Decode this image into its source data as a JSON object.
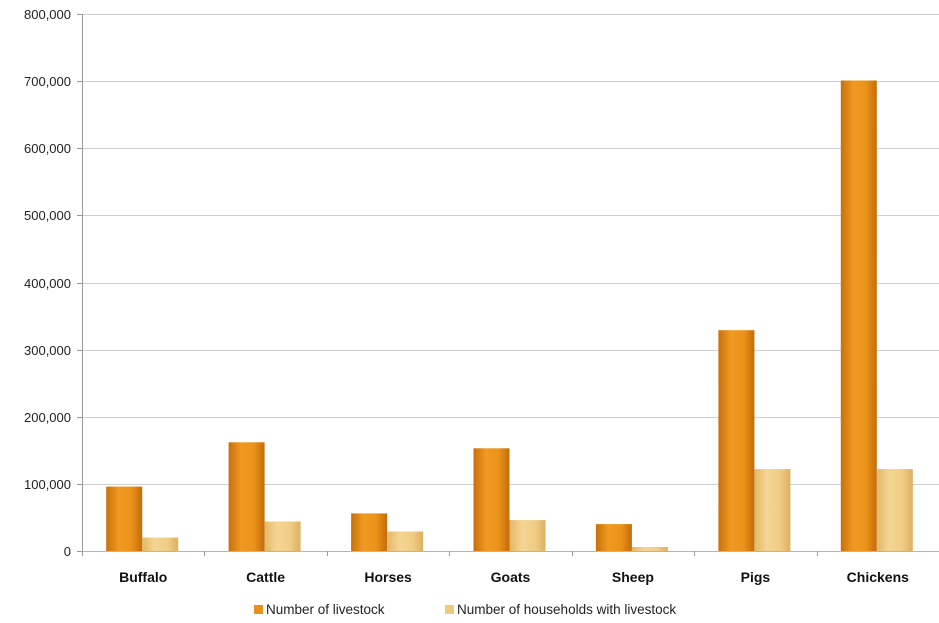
{
  "chart_data": {
    "type": "bar",
    "categories": [
      "Buffalo",
      "Cattle",
      "Horses",
      "Goats",
      "Sheep",
      "Pigs",
      "Chickens"
    ],
    "series": [
      {
        "name": "Number of livestock",
        "color": "#e8901c",
        "values": [
          96000,
          162000,
          56000,
          153000,
          40000,
          329000,
          701000
        ]
      },
      {
        "name": "Number of households with livestock",
        "color": "#efca80",
        "values": [
          20000,
          44000,
          29000,
          46000,
          6000,
          122000,
          122000
        ]
      }
    ],
    "yticks": [
      "0",
      "100,000",
      "200,000",
      "300,000",
      "400,000",
      "500,000",
      "600,000",
      "700,000",
      "800,000"
    ],
    "ylim": [
      0,
      800000
    ],
    "grid": true,
    "legend": "bottom",
    "title": "",
    "xlabel": "",
    "ylabel": ""
  }
}
